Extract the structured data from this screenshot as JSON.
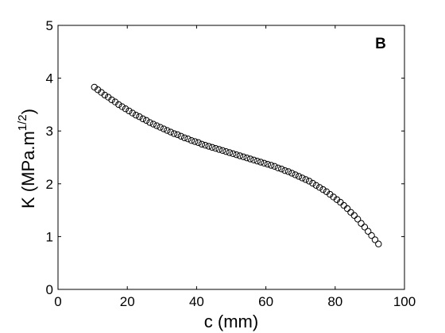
{
  "chart_data": {
    "type": "scatter",
    "panel_label": "B",
    "xlabel": "c (mm)",
    "ylabel": {
      "main": "K (MPa.m",
      "sup": "1/2",
      "close": ")"
    },
    "xlim": [
      0,
      100
    ],
    "ylim": [
      0,
      5
    ],
    "xticks": [
      0,
      20,
      40,
      60,
      80,
      100
    ],
    "yticks": [
      0,
      1,
      2,
      3,
      4,
      5
    ],
    "grid": false,
    "marker": "open-circle",
    "marker_color": "#000000",
    "series": [
      {
        "points": [
          [
            10.5,
            3.83
          ],
          [
            11.5,
            3.78
          ],
          [
            12.5,
            3.73
          ],
          [
            13.5,
            3.68
          ],
          [
            14.5,
            3.64
          ],
          [
            15.5,
            3.59
          ],
          [
            16.5,
            3.55
          ],
          [
            17.5,
            3.5
          ],
          [
            18.5,
            3.46
          ],
          [
            19.5,
            3.42
          ],
          [
            20.5,
            3.38
          ],
          [
            21.5,
            3.34
          ],
          [
            22.5,
            3.3
          ],
          [
            23.5,
            3.27
          ],
          [
            24.5,
            3.23
          ],
          [
            25.5,
            3.2
          ],
          [
            26.5,
            3.16
          ],
          [
            27.5,
            3.13
          ],
          [
            28.5,
            3.1
          ],
          [
            29.5,
            3.07
          ],
          [
            30.5,
            3.04
          ],
          [
            31.5,
            3.01
          ],
          [
            32.5,
            2.98
          ],
          [
            33.5,
            2.95
          ],
          [
            34.5,
            2.93
          ],
          [
            35.5,
            2.9
          ],
          [
            36.5,
            2.87
          ],
          [
            37.5,
            2.85
          ],
          [
            38.5,
            2.82
          ],
          [
            39.5,
            2.8
          ],
          [
            40.5,
            2.78
          ],
          [
            41.5,
            2.75
          ],
          [
            42.5,
            2.73
          ],
          [
            43.5,
            2.71
          ],
          [
            44.5,
            2.69
          ],
          [
            45.5,
            2.67
          ],
          [
            46.5,
            2.65
          ],
          [
            47.5,
            2.63
          ],
          [
            48.5,
            2.61
          ],
          [
            49.5,
            2.59
          ],
          [
            50.5,
            2.57
          ],
          [
            51.5,
            2.55
          ],
          [
            52.5,
            2.53
          ],
          [
            53.5,
            2.51
          ],
          [
            54.5,
            2.49
          ],
          [
            55.5,
            2.47
          ],
          [
            56.5,
            2.45
          ],
          [
            57.5,
            2.43
          ],
          [
            58.5,
            2.41
          ],
          [
            59.5,
            2.39
          ],
          [
            60.5,
            2.37
          ],
          [
            61.5,
            2.35
          ],
          [
            62.5,
            2.33
          ],
          [
            63.5,
            2.3
          ],
          [
            64.5,
            2.28
          ],
          [
            65.5,
            2.25
          ],
          [
            66.5,
            2.23
          ],
          [
            67.5,
            2.2
          ],
          [
            68.5,
            2.17
          ],
          [
            69.5,
            2.14
          ],
          [
            70.5,
            2.11
          ],
          [
            71.5,
            2.08
          ],
          [
            72.5,
            2.05
          ],
          [
            73.5,
            2.01
          ],
          [
            74.5,
            1.97
          ],
          [
            75.5,
            1.93
          ],
          [
            76.5,
            1.89
          ],
          [
            77.5,
            1.85
          ],
          [
            78.5,
            1.8
          ],
          [
            79.5,
            1.75
          ],
          [
            80.5,
            1.7
          ],
          [
            81.5,
            1.65
          ],
          [
            82.5,
            1.59
          ],
          [
            83.5,
            1.53
          ],
          [
            84.5,
            1.46
          ],
          [
            85.5,
            1.4
          ],
          [
            86.5,
            1.33
          ],
          [
            87.5,
            1.25
          ],
          [
            88.5,
            1.18
          ],
          [
            89.5,
            1.1
          ],
          [
            90.5,
            1.02
          ],
          [
            91.5,
            0.94
          ],
          [
            92.5,
            0.86
          ]
        ]
      }
    ]
  }
}
